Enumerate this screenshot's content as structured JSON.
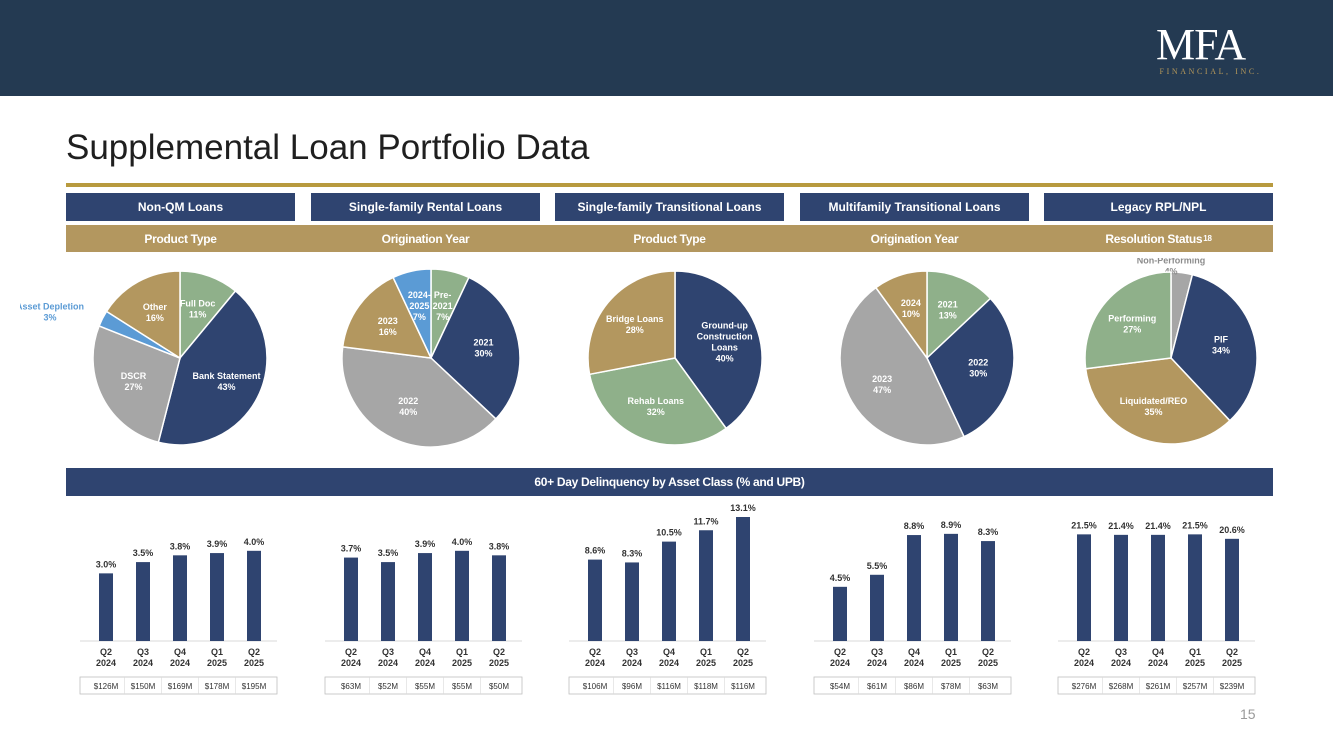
{
  "header": {
    "logo_main": "MFA",
    "logo_sub": "FINANCIAL, INC."
  },
  "page": {
    "title": "Supplemental Loan Portfolio Data",
    "number": "15"
  },
  "sections": [
    {
      "tab": "Non-QM Loans",
      "subtitle": "Product Type",
      "footnote": ""
    },
    {
      "tab": "Single-family Rental Loans",
      "subtitle": "Origination Year",
      "footnote": ""
    },
    {
      "tab": "Single-family Transitional Loans",
      "subtitle": "Product Type",
      "footnote": ""
    },
    {
      "tab": "Multifamily Transitional Loans",
      "subtitle": "Origination Year",
      "footnote": ""
    },
    {
      "tab": "Legacy RPL/NPL",
      "subtitle": "Resolution Status",
      "footnote": "18"
    }
  ],
  "delinquency_title": "60+ Day Delinquency by Asset Class (% and UPB)",
  "chart_data": [
    {
      "type": "pie",
      "slices": [
        {
          "label": [
            "Full Doc"
          ],
          "value": 11,
          "pct": "11%",
          "color": "#8fb08a"
        },
        {
          "label": [
            "Bank Statement"
          ],
          "value": 43,
          "pct": "43%",
          "color": "#2f4470"
        },
        {
          "label": [
            "DSCR"
          ],
          "value": 27,
          "pct": "27%",
          "color": "#a6a6a6"
        },
        {
          "label": [
            "Asset Depletion"
          ],
          "value": 3,
          "pct": "3%",
          "color": "#5b9bd5"
        },
        {
          "label": [
            "Other"
          ],
          "value": 16,
          "pct": "16%",
          "color": "#b3975f"
        }
      ]
    },
    {
      "type": "pie",
      "slices": [
        {
          "label": [
            "Pre-",
            "2021"
          ],
          "value": 7,
          "pct": "7%",
          "color": "#8fb08a"
        },
        {
          "label": [
            "2021"
          ],
          "value": 30,
          "pct": "30%",
          "color": "#2f4470"
        },
        {
          "label": [
            "2022"
          ],
          "value": 40,
          "pct": "40%",
          "color": "#a6a6a6"
        },
        {
          "label": [
            "2023"
          ],
          "value": 16,
          "pct": "16%",
          "color": "#b3975f"
        },
        {
          "label": [
            "2024-",
            "2025"
          ],
          "value": 7,
          "pct": "7%",
          "color": "#5b9bd5"
        }
      ]
    },
    {
      "type": "pie",
      "slices": [
        {
          "label": [
            "Ground-up",
            "Construction",
            "Loans"
          ],
          "value": 40,
          "pct": "40%",
          "color": "#2f4470"
        },
        {
          "label": [
            "Rehab Loans"
          ],
          "value": 32,
          "pct": "32%",
          "color": "#8fb08a"
        },
        {
          "label": [
            "Bridge Loans"
          ],
          "value": 28,
          "pct": "28%",
          "color": "#b3975f"
        }
      ]
    },
    {
      "type": "pie",
      "slices": [
        {
          "label": [
            "2021"
          ],
          "value": 13,
          "pct": "13%",
          "color": "#8fb08a"
        },
        {
          "label": [
            "2022"
          ],
          "value": 30,
          "pct": "30%",
          "color": "#2f4470"
        },
        {
          "label": [
            "2023"
          ],
          "value": 47,
          "pct": "47%",
          "color": "#a6a6a6"
        },
        {
          "label": [
            "2024"
          ],
          "value": 10,
          "pct": "10%",
          "color": "#b3975f"
        }
      ]
    },
    {
      "type": "pie",
      "slices": [
        {
          "label": [
            "Non-Performing"
          ],
          "value": 4,
          "pct": "4%",
          "color": "#a6a6a6"
        },
        {
          "label": [
            "PIF"
          ],
          "value": 34,
          "pct": "34%",
          "color": "#2f4470"
        },
        {
          "label": [
            "Liquidated/REO"
          ],
          "value": 35,
          "pct": "35%",
          "color": "#b3975f"
        },
        {
          "label": [
            "Performing"
          ],
          "value": 27,
          "pct": "27%",
          "color": "#8fb08a"
        }
      ]
    },
    {
      "type": "bar",
      "categories": [
        [
          "Q2",
          "2024"
        ],
        [
          "Q3",
          "2024"
        ],
        [
          "Q4",
          "2024"
        ],
        [
          "Q1",
          "2025"
        ],
        [
          "Q2",
          "2025"
        ]
      ],
      "values": [
        3.0,
        3.5,
        3.8,
        3.9,
        4.0
      ],
      "labels": [
        "3.0%",
        "3.5%",
        "3.8%",
        "3.9%",
        "4.0%"
      ],
      "upb": [
        "$126M",
        "$150M",
        "$169M",
        "$178M",
        "$195M"
      ],
      "ymax": 5.5
    },
    {
      "type": "bar",
      "categories": [
        [
          "Q2",
          "2024"
        ],
        [
          "Q3",
          "2024"
        ],
        [
          "Q4",
          "2024"
        ],
        [
          "Q1",
          "2025"
        ],
        [
          "Q2",
          "2025"
        ]
      ],
      "values": [
        3.7,
        3.5,
        3.9,
        4.0,
        3.8
      ],
      "labels": [
        "3.7%",
        "3.5%",
        "3.9%",
        "4.0%",
        "3.8%"
      ],
      "upb": [
        "$63M",
        "$52M",
        "$55M",
        "$55M",
        "$50M"
      ],
      "ymax": 5.5
    },
    {
      "type": "bar",
      "categories": [
        [
          "Q2",
          "2024"
        ],
        [
          "Q3",
          "2024"
        ],
        [
          "Q4",
          "2024"
        ],
        [
          "Q1",
          "2025"
        ],
        [
          "Q2",
          "2025"
        ]
      ],
      "values": [
        8.6,
        8.3,
        10.5,
        11.7,
        13.1
      ],
      "labels": [
        "8.6%",
        "8.3%",
        "10.5%",
        "11.7%",
        "13.1%"
      ],
      "upb": [
        "$106M",
        "$96M",
        "$116M",
        "$118M",
        "$116M"
      ],
      "ymax": 13.1
    },
    {
      "type": "bar",
      "categories": [
        [
          "Q2",
          "2024"
        ],
        [
          "Q3",
          "2024"
        ],
        [
          "Q4",
          "2024"
        ],
        [
          "Q1",
          "2025"
        ],
        [
          "Q2",
          "2025"
        ]
      ],
      "values": [
        4.5,
        5.5,
        8.8,
        8.9,
        8.3
      ],
      "labels": [
        "4.5%",
        "5.5%",
        "8.8%",
        "8.9%",
        "8.3%"
      ],
      "upb": [
        "$54M",
        "$61M",
        "$86M",
        "$78M",
        "$63M"
      ],
      "ymax": 10.3
    },
    {
      "type": "bar",
      "categories": [
        [
          "Q2",
          "2024"
        ],
        [
          "Q3",
          "2024"
        ],
        [
          "Q4",
          "2024"
        ],
        [
          "Q1",
          "2025"
        ],
        [
          "Q2",
          "2025"
        ]
      ],
      "values": [
        21.5,
        21.4,
        21.4,
        21.5,
        20.6
      ],
      "labels": [
        "21.5%",
        "21.4%",
        "21.4%",
        "21.5%",
        "20.6%"
      ],
      "upb": [
        "$276M",
        "$268M",
        "$261M",
        "$257M",
        "$239M"
      ],
      "ymax": 25.0
    }
  ]
}
